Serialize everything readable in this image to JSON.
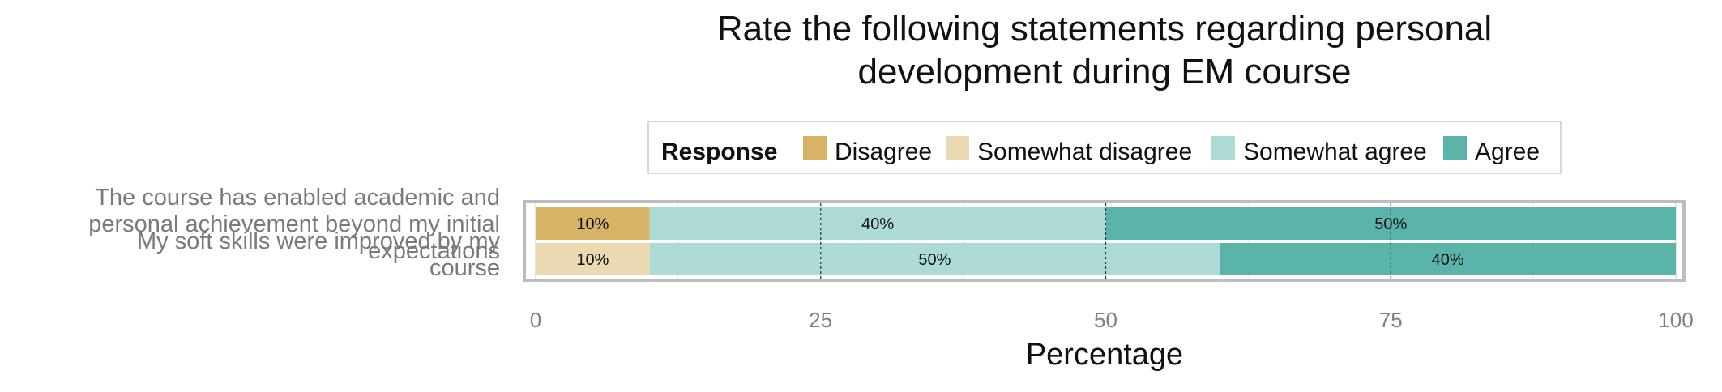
{
  "chart_data": {
    "type": "bar",
    "orientation": "horizontal",
    "stacked": true,
    "title_lines": [
      "Rate the following statements regarding personal",
      "development during EM course"
    ],
    "xlabel": "Percentage",
    "ylabel": "",
    "xlim": [
      0,
      100
    ],
    "xticks": [
      0,
      25,
      50,
      75,
      100
    ],
    "grid": true,
    "legend": {
      "title": "Response",
      "position": "top",
      "items": [
        {
          "label": "Disagree",
          "color": "#D9B365"
        },
        {
          "label": "Somewhat disagree",
          "color": "#EBD9B1"
        },
        {
          "label": "Somewhat agree",
          "color": "#ACDAD5"
        },
        {
          "label": "Agree",
          "color": "#5BB4AA"
        }
      ]
    },
    "categories": [
      {
        "lines": [
          "The course has enabled academic and",
          "personal achievement beyond my initial",
          "expectations"
        ]
      },
      {
        "lines": [
          "My soft skills were improved by my",
          "course"
        ]
      }
    ],
    "series": [
      {
        "name": "Disagree",
        "color": "#D9B365",
        "values": [
          10,
          0
        ]
      },
      {
        "name": "Somewhat disagree",
        "color": "#EBD9B1",
        "values": [
          0,
          10
        ]
      },
      {
        "name": "Somewhat agree",
        "color": "#ACDAD5",
        "values": [
          40,
          50
        ]
      },
      {
        "name": "Agree",
        "color": "#5BB4AA",
        "values": [
          50,
          40
        ]
      }
    ],
    "data_labels": [
      [
        "10%",
        "",
        "40%",
        "50%"
      ],
      [
        "",
        "10%",
        "50%",
        "40%"
      ]
    ]
  }
}
